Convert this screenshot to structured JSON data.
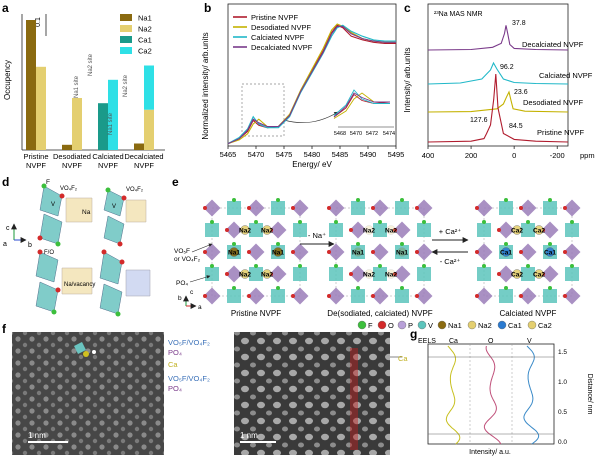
{
  "colors": {
    "na1": "#8a6a10",
    "na2": "#e4cf70",
    "ca1": "#1a9a8a",
    "ca2": "#2ee0e6",
    "pristine": "#b01c2e",
    "desodiated": "#c4b200",
    "calciated": "#20b8c8",
    "decalciated": "#7a3a8a",
    "eels_ca": "#c8c020",
    "eels_o": "#c0507a",
    "eels_v": "#3a8ac8"
  },
  "panel_a": {
    "label": "a",
    "ylabel": "Occupency",
    "scale_label": "0.1",
    "legend": [
      "Na1",
      "Na2",
      "Ca1",
      "Ca2"
    ],
    "categories": [
      "Pristine\nNVPF",
      "Desodiated\nNVPF",
      "Calciated\nNVPF",
      "Decalciated\nNVPF"
    ],
    "site_labels": [
      "Na1 site",
      "Na2 site",
      "Na1 site",
      "Na2 site"
    ]
  },
  "panel_b": {
    "label": "b",
    "ylabel": "Normalized intensity/ arb.units",
    "xlabel": "Energy/ eV",
    "x_ticks": [
      "5465",
      "5470",
      "5475",
      "5480",
      "5485",
      "5490",
      "5495"
    ],
    "inset_ticks": [
      "5468",
      "5470",
      "5472",
      "5474"
    ],
    "legend": [
      "Pristine NVPF",
      "Desodiated NVPF",
      "Calciated NVPF",
      "Decalciated NVPF"
    ]
  },
  "panel_c": {
    "label": "c",
    "title": "²³Na MAS NMR",
    "ylabel": "Intensity/ arb.units",
    "x_ticks": [
      "400",
      "200",
      "0",
      "-200"
    ],
    "x_unit": "ppm",
    "peaks": [
      "37.8",
      "96.2",
      "23.6",
      "127.6",
      "84.5"
    ],
    "trace_labels": [
      "Decalciated NVPF",
      "Calciated NVPF",
      "Desodiated NVPF",
      "Pristine NVPF"
    ]
  },
  "panel_d": {
    "label": "d",
    "texts": [
      "F",
      "VO₄F₂",
      "V",
      "VO₄F₂",
      "Na",
      "V",
      "F/O",
      "Na/vacancy"
    ],
    "axes": [
      "c",
      "b",
      "a"
    ]
  },
  "panel_e": {
    "label": "e",
    "structures": [
      "Pristine NVPF",
      "De(sodiated, calciated) NVPF",
      "Calciated NVPF"
    ],
    "arrow_minus_na": "- Na⁺",
    "arrow_plus_ca": "+ Ca²⁺",
    "arrow_minus_ca": "- Ca²⁺",
    "callouts": [
      "VO₅F",
      "or VO₄F₂",
      "PO₄"
    ],
    "axes": [
      "b",
      "c",
      "a"
    ],
    "site_na1": "Na1",
    "site_na2": "Na2",
    "site_ca1": "Ca1",
    "site_ca2": "Ca2",
    "legend": [
      "F",
      "O",
      "P",
      "V",
      "Na1",
      "Na2",
      "Ca1",
      "Ca2"
    ]
  },
  "panel_f": {
    "label": "f",
    "scalebar_left": "1 nm",
    "scalebar_right": "1 nm",
    "labels": [
      "VO₅F/VO₄F₂",
      "PO₄",
      "Ca",
      "VO₅F/VO₄F₂",
      "PO₄"
    ],
    "ca_marker": "Ca"
  },
  "panel_g": {
    "label": "g",
    "headers": [
      "EELS",
      "Ca",
      "O",
      "V"
    ],
    "xlabel": "Intensity/ a.u.",
    "ylabel": "Distance/ nm",
    "y_ticks": [
      "0.0",
      "0.5",
      "1.0",
      "1.5"
    ]
  },
  "chart_data": [
    {
      "type": "bar",
      "panel": "a",
      "categories": [
        "Pristine NVPF",
        "Desodiated NVPF",
        "Calciated NVPF",
        "Decalciated NVPF"
      ],
      "series": [
        {
          "name": "Na1",
          "values": [
            1.0,
            0.04,
            0.0,
            0.0
          ]
        },
        {
          "name": "Na2",
          "values": [
            0.64,
            0.4,
            0.0,
            0.0
          ]
        },
        {
          "name": "Ca1",
          "values": [
            0.0,
            0.0,
            0.36,
            0.0
          ]
        },
        {
          "name": "Ca2",
          "values": [
            0.0,
            0.0,
            0.54,
            0.34
          ]
        }
      ],
      "stack_base": [
        {
          "name": "Na1",
          "values": [
            0,
            0,
            0,
            0.05
          ]
        },
        {
          "name": "Na2",
          "values": [
            0,
            0,
            0.0,
            0.31
          ]
        }
      ]
    },
    {
      "type": "line",
      "panel": "b",
      "xlim": [
        5465,
        5495
      ],
      "series": [
        {
          "name": "Pristine NVPF",
          "x": [
            5465,
            5467,
            5468.5,
            5469.5,
            5470.5,
            5472,
            5474,
            5476,
            5478,
            5480,
            5482,
            5483.5,
            5484.5,
            5485.5,
            5487,
            5489,
            5491,
            5493,
            5495
          ],
          "y": [
            0.02,
            0.06,
            0.12,
            0.21,
            0.17,
            0.15,
            0.16,
            0.25,
            0.45,
            0.62,
            0.78,
            0.93,
            0.99,
            0.97,
            0.9,
            0.87,
            0.85,
            0.84,
            0.84
          ]
        },
        {
          "name": "Desodiated NVPF",
          "x": [
            5465,
            5467,
            5468.5,
            5469.5,
            5470.5,
            5472,
            5474,
            5476,
            5478,
            5480,
            5482,
            5483.5,
            5484.5,
            5485.5,
            5487,
            5489,
            5491,
            5493,
            5495
          ],
          "y": [
            0.02,
            0.05,
            0.1,
            0.18,
            0.22,
            0.16,
            0.16,
            0.26,
            0.46,
            0.63,
            0.8,
            0.95,
            1.0,
            0.98,
            0.93,
            0.88,
            0.86,
            0.85,
            0.85
          ]
        },
        {
          "name": "Calciated NVPF",
          "x": [
            5465,
            5467,
            5468.5,
            5469.5,
            5470.5,
            5472,
            5474,
            5476,
            5478,
            5480,
            5482,
            5483.5,
            5484.5,
            5485.5,
            5487,
            5489,
            5491,
            5493,
            5495
          ],
          "y": [
            0.02,
            0.07,
            0.14,
            0.24,
            0.18,
            0.15,
            0.15,
            0.24,
            0.44,
            0.6,
            0.76,
            0.9,
            0.97,
            0.99,
            0.94,
            0.9,
            0.87,
            0.86,
            0.86
          ]
        },
        {
          "name": "Decalciated NVPF",
          "x": [
            5465,
            5467,
            5468.5,
            5469.5,
            5470.5,
            5472,
            5474,
            5476,
            5478,
            5480,
            5482,
            5483.5,
            5484.5,
            5485.5,
            5487,
            5489,
            5491,
            5493,
            5495
          ],
          "y": [
            0.02,
            0.06,
            0.13,
            0.22,
            0.19,
            0.16,
            0.16,
            0.25,
            0.45,
            0.61,
            0.77,
            0.92,
            0.98,
            0.98,
            0.92,
            0.88,
            0.86,
            0.85,
            0.85
          ]
        }
      ]
    },
    {
      "type": "line",
      "panel": "c",
      "xlim": [
        400,
        -250
      ],
      "series": [
        {
          "name": "Decalciated NVPF",
          "x": [
            400,
            200,
            100,
            60,
            45,
            38,
            30,
            20,
            0,
            -100,
            -250
          ],
          "y": [
            0.0,
            0.01,
            0.05,
            0.12,
            0.3,
            0.45,
            0.3,
            0.1,
            0.03,
            0.01,
            0.0
          ]
        },
        {
          "name": "Calciated NVPF",
          "x": [
            400,
            250,
            150,
            110,
            96,
            80,
            50,
            0,
            -100,
            -250
          ],
          "y": [
            0.0,
            0.02,
            0.1,
            0.28,
            0.42,
            0.3,
            0.1,
            0.03,
            0.01,
            0.0
          ]
        },
        {
          "name": "Desodiated NVPF",
          "x": [
            400,
            200,
            80,
            50,
            35,
            24,
            15,
            5,
            -50,
            -250
          ],
          "y": [
            0.0,
            0.01,
            0.08,
            0.2,
            0.38,
            0.5,
            0.3,
            0.08,
            0.02,
            0.0
          ]
        },
        {
          "name": "Pristine NVPF",
          "x": [
            400,
            200,
            140,
            128,
            110,
            95,
            85,
            75,
            50,
            0,
            -100,
            -250
          ],
          "y": [
            0.0,
            0.01,
            0.04,
            0.1,
            0.2,
            0.5,
            0.8,
            0.4,
            0.1,
            0.03,
            0.01,
            0.0
          ]
        }
      ]
    }
  ]
}
